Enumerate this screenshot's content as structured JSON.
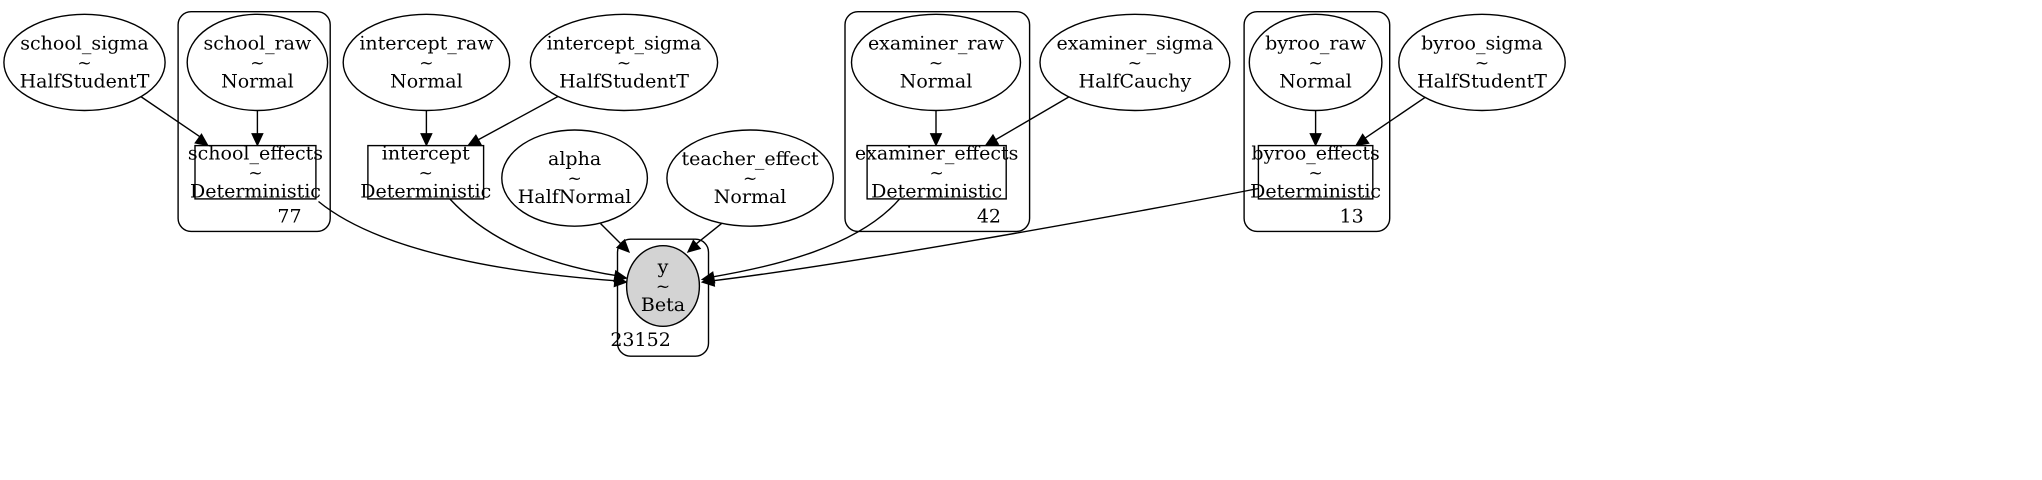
{
  "nodes": [
    {
      "id": "school_sigma",
      "name": "school_sigma",
      "sep": "~",
      "dist": "HalfStudentT",
      "shape": "ellipse"
    },
    {
      "id": "school_raw",
      "name": "school_raw",
      "sep": "~",
      "dist": "Normal",
      "shape": "ellipse"
    },
    {
      "id": "school_effects",
      "name": "school_effects",
      "sep": "~",
      "dist": "Deterministic",
      "shape": "box"
    },
    {
      "id": "intercept_raw",
      "name": "intercept_raw",
      "sep": "~",
      "dist": "Normal",
      "shape": "ellipse"
    },
    {
      "id": "intercept_sigma",
      "name": "intercept_sigma",
      "sep": "~",
      "dist": "HalfStudentT",
      "shape": "ellipse"
    },
    {
      "id": "intercept",
      "name": "intercept",
      "sep": "~",
      "dist": "Deterministic",
      "shape": "box"
    },
    {
      "id": "alpha",
      "name": "alpha",
      "sep": "~",
      "dist": "HalfNormal",
      "shape": "ellipse"
    },
    {
      "id": "teacher_effect",
      "name": "teacher_effect",
      "sep": "~",
      "dist": "Normal",
      "shape": "ellipse"
    },
    {
      "id": "y",
      "name": "y",
      "sep": "~",
      "dist": "Beta",
      "shape": "ellipse",
      "observed": true
    },
    {
      "id": "examiner_raw",
      "name": "examiner_raw",
      "sep": "~",
      "dist": "Normal",
      "shape": "ellipse"
    },
    {
      "id": "examiner_sigma",
      "name": "examiner_sigma",
      "sep": "~",
      "dist": "HalfCauchy",
      "shape": "ellipse"
    },
    {
      "id": "examiner_effects",
      "name": "examiner_effects",
      "sep": "~",
      "dist": "Deterministic",
      "shape": "box"
    },
    {
      "id": "byroo_raw",
      "name": "byroo_raw",
      "sep": "~",
      "dist": "Normal",
      "shape": "ellipse"
    },
    {
      "id": "byroo_sigma",
      "name": "byroo_sigma",
      "sep": "~",
      "dist": "HalfStudentT",
      "shape": "ellipse"
    },
    {
      "id": "byroo_effects",
      "name": "byroo_effects",
      "sep": "~",
      "dist": "Deterministic",
      "shape": "box"
    }
  ],
  "plates": [
    {
      "id": "school",
      "label": "77"
    },
    {
      "id": "examiner",
      "label": "42"
    },
    {
      "id": "byroo",
      "label": "13"
    },
    {
      "id": "obs",
      "label": "23152"
    }
  ],
  "edges": [
    {
      "from": "school_sigma",
      "to": "school_effects"
    },
    {
      "from": "school_raw",
      "to": "school_effects"
    },
    {
      "from": "intercept_raw",
      "to": "intercept"
    },
    {
      "from": "intercept_sigma",
      "to": "intercept"
    },
    {
      "from": "examiner_raw",
      "to": "examiner_effects"
    },
    {
      "from": "examiner_sigma",
      "to": "examiner_effects"
    },
    {
      "from": "byroo_raw",
      "to": "byroo_effects"
    },
    {
      "from": "byroo_sigma",
      "to": "byroo_effects"
    },
    {
      "from": "school_effects",
      "to": "y"
    },
    {
      "from": "intercept",
      "to": "y"
    },
    {
      "from": "alpha",
      "to": "y"
    },
    {
      "from": "teacher_effect",
      "to": "y"
    },
    {
      "from": "examiner_effects",
      "to": "y"
    },
    {
      "from": "byroo_effects",
      "to": "y"
    }
  ]
}
